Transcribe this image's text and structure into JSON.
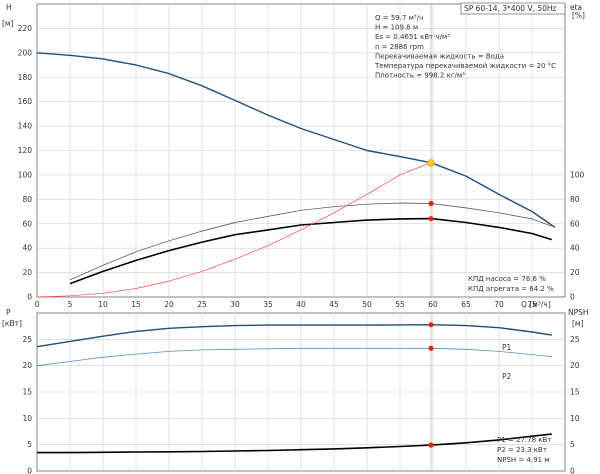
{
  "chart_data": [
    {
      "type": "line",
      "id": "head_efficiency",
      "header": "SP 60-14, 3*400 V, 50Hz",
      "y_left_label": "H",
      "y_left_unit": "[м]",
      "y_right_label": "eta",
      "y_right_unit": "[%]",
      "x_label": "Q [м³/ч]",
      "xlim": [
        0,
        80
      ],
      "ylim_left": [
        0,
        240
      ],
      "ylim_right": [
        0,
        240
      ],
      "x_ticks": [
        "0",
        "5",
        "10",
        "15",
        "20",
        "25",
        "30",
        "35",
        "40",
        "45",
        "50",
        "55",
        "60",
        "65",
        "70",
        "75"
      ],
      "y_left_ticks": [
        "0",
        "20",
        "40",
        "60",
        "80",
        "100",
        "120",
        "140",
        "160",
        "180",
        "200",
        "220"
      ],
      "y_right_ticks": [
        "0",
        "20",
        "40",
        "60",
        "80",
        "100"
      ],
      "grid": true,
      "annotations": [
        "Q = 59.7 м³/ч",
        "H = 109.8 м",
        "Es = 0.4651 кВт·ч/м³",
        "n = 2886 rpm",
        "Перекачиваемая жидкость = Вода",
        "Температура перекачиваемой жидкости = 20 °C",
        "Плотность = 998.2 кг/м³"
      ],
      "efficiency_labels": [
        "КПД насоса = 76.6 %",
        "КПД агрегата = 64.2 %"
      ],
      "series": [
        {
          "id": "H",
          "color": "#1f4e79",
          "x": [
            0,
            5,
            10,
            15,
            20,
            25,
            30,
            35,
            40,
            45,
            50,
            55,
            59.7,
            65,
            70,
            75,
            78.5
          ],
          "values": [
            200,
            198,
            195,
            190,
            183,
            173,
            161,
            149,
            138,
            129,
            120,
            115,
            110,
            99,
            84,
            70,
            57
          ]
        },
        {
          "id": "eta_pump",
          "color": "#444444",
          "x": [
            5,
            10,
            15,
            20,
            25,
            30,
            35,
            40,
            45,
            50,
            55,
            59.7,
            65,
            70,
            75,
            78
          ],
          "values": [
            14,
            26,
            37,
            46,
            54,
            61,
            66,
            71,
            74,
            76,
            77,
            76.6,
            73,
            69,
            64,
            58
          ]
        },
        {
          "id": "eta_unit",
          "color": "#000000",
          "x": [
            5,
            10,
            15,
            20,
            25,
            30,
            35,
            40,
            45,
            50,
            55,
            59.7,
            65,
            70,
            75,
            78
          ],
          "values": [
            11,
            21,
            30,
            38,
            45,
            51,
            55,
            59,
            61,
            63,
            64,
            64.2,
            61,
            57,
            52,
            47
          ]
        },
        {
          "id": "system_curve",
          "color": "#ff4444",
          "x": [
            0,
            5,
            10,
            15,
            20,
            25,
            30,
            35,
            40,
            45,
            50,
            55,
            59.7
          ],
          "values": [
            0,
            1,
            3,
            7,
            13,
            21,
            31,
            42,
            55,
            69,
            84,
            100,
            110
          ]
        }
      ],
      "operating_point": {
        "x": 59.7,
        "h": 109.8,
        "eta_pump": 76.6,
        "eta_unit": 64.2
      }
    },
    {
      "type": "line",
      "id": "power_npsh",
      "y_left_label": "P",
      "y_left_unit": "[кВт]",
      "y_right_label": "NPSH",
      "y_right_unit": "[м]",
      "xlim": [
        0,
        80
      ],
      "ylim_left": [
        0,
        30
      ],
      "ylim_right": [
        0,
        30
      ],
      "y_left_ticks": [
        "0",
        "5",
        "10",
        "15",
        "20",
        "25"
      ],
      "y_right_ticks": [
        "0",
        "5",
        "10",
        "15",
        "20",
        "25"
      ],
      "grid": true,
      "value_labels": [
        "P1 = 27.78 кВт",
        "P2 = 23.3 кВт",
        "NPSH = 4.91 м"
      ],
      "series": [
        {
          "id": "P1",
          "name": "P1",
          "color": "#1f4e79",
          "x": [
            0,
            5,
            10,
            15,
            20,
            25,
            30,
            35,
            40,
            45,
            50,
            55,
            59.7,
            65,
            70,
            75,
            78
          ],
          "values": [
            23.6,
            24.6,
            25.6,
            26.5,
            27.1,
            27.4,
            27.6,
            27.7,
            27.7,
            27.7,
            27.7,
            27.75,
            27.78,
            27.6,
            27.2,
            26.4,
            25.8
          ]
        },
        {
          "id": "P2",
          "name": "P2",
          "color": "#5b8fc0",
          "x": [
            0,
            5,
            10,
            15,
            20,
            25,
            30,
            35,
            40,
            45,
            50,
            55,
            59.7,
            65,
            70,
            75,
            78
          ],
          "values": [
            20.0,
            20.8,
            21.6,
            22.2,
            22.7,
            23.0,
            23.1,
            23.2,
            23.3,
            23.3,
            23.3,
            23.3,
            23.3,
            23.1,
            22.7,
            22.1,
            21.7
          ]
        },
        {
          "id": "NPSH",
          "color": "#000000",
          "x": [
            0,
            5,
            10,
            15,
            20,
            25,
            30,
            35,
            40,
            45,
            50,
            55,
            59.7,
            65,
            70,
            75,
            78
          ],
          "values": [
            3.5,
            3.5,
            3.55,
            3.6,
            3.65,
            3.7,
            3.8,
            3.9,
            4.05,
            4.2,
            4.4,
            4.65,
            4.91,
            5.35,
            5.9,
            6.6,
            7.0
          ]
        }
      ],
      "operating_point": {
        "x": 59.7,
        "p1": 27.78,
        "p2": 23.3,
        "npsh": 4.91
      }
    }
  ]
}
